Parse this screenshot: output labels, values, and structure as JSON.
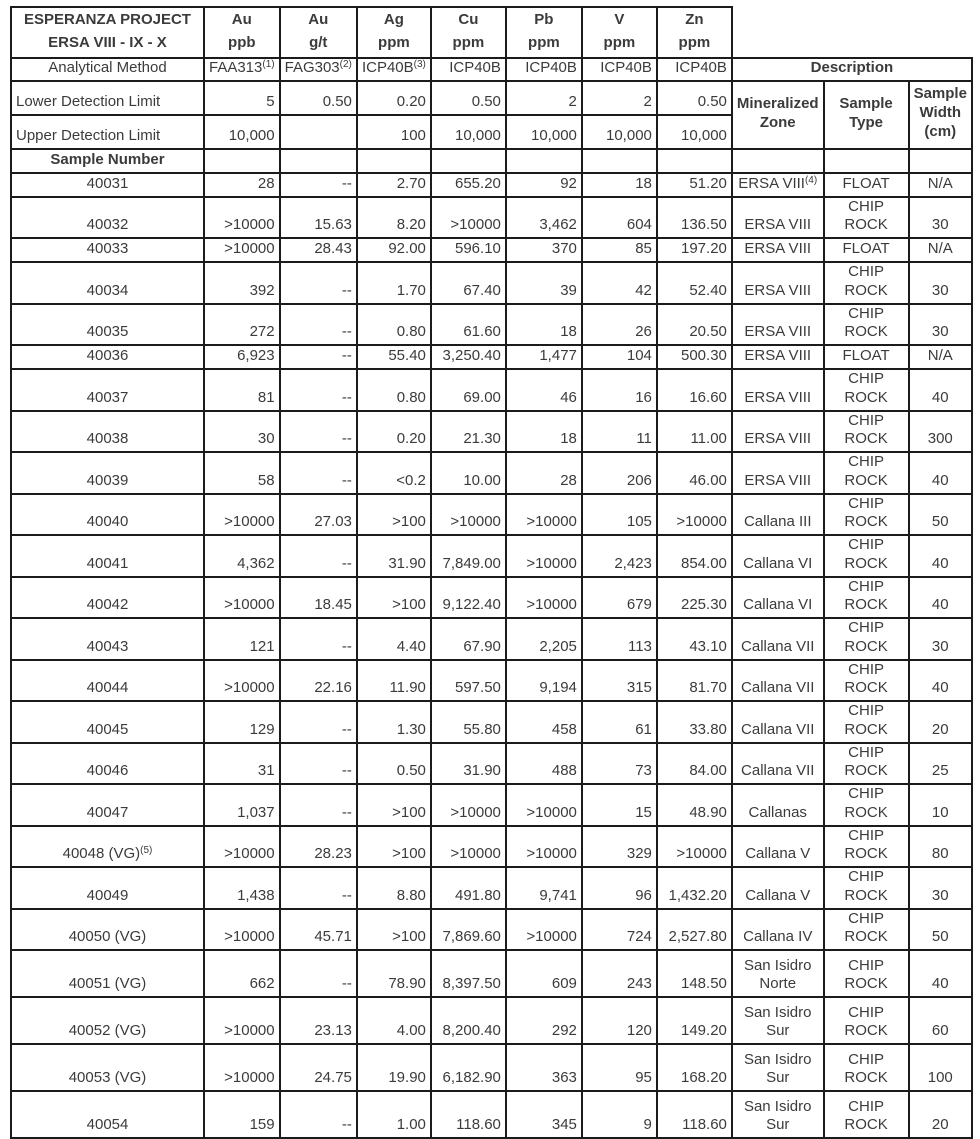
{
  "table": {
    "title_line1": "ESPERANZA PROJECT",
    "title_line2": "ERSA VIII - IX - X",
    "element_headers": [
      {
        "symbol": "Au",
        "unit": "ppb"
      },
      {
        "symbol": "Au",
        "unit": "g/t"
      },
      {
        "symbol": "Ag",
        "unit": "ppm"
      },
      {
        "symbol": "Cu",
        "unit": "ppm"
      },
      {
        "symbol": "Pb",
        "unit": "ppm"
      },
      {
        "symbol": "V",
        "unit": "ppm"
      },
      {
        "symbol": "Zn",
        "unit": "ppm"
      }
    ],
    "analytical_method": {
      "label": "Analytical Method",
      "methods": [
        {
          "text": "FAA313",
          "sup": "(1)"
        },
        {
          "text": "FAG303",
          "sup": "(2)"
        },
        {
          "text": "ICP40B",
          "sup": "(3)"
        },
        {
          "text": "ICP40B",
          "sup": ""
        },
        {
          "text": "ICP40B",
          "sup": ""
        },
        {
          "text": "ICP40B",
          "sup": ""
        },
        {
          "text": "ICP40B",
          "sup": ""
        }
      ]
    },
    "lower_detection": {
      "label": "Lower Detection Limit",
      "values": [
        "5",
        "0.50",
        "0.20",
        "0.50",
        "2",
        "2",
        "0.50"
      ]
    },
    "upper_detection": {
      "label": "Upper Detection Limit",
      "values": [
        "10,000",
        "",
        "100",
        "10,000",
        "10,000",
        "10,000",
        "10,000"
      ]
    },
    "sample_number_label": "Sample Number",
    "description_header": "Description",
    "description_columns": [
      "Mineralized\nZone",
      "Sample\nType",
      "Sample\nWidth\n(cm)"
    ],
    "samples": [
      {
        "id": "40031",
        "au_ppb": "28",
        "au_gt": "--",
        "ag": "2.70",
        "cu": "655.20",
        "pb": "92",
        "v": "18",
        "zn": "51.20",
        "zone": "ERSA VIII",
        "zone_sup": "(4)",
        "type": "FLOAT",
        "width": "N/A"
      },
      {
        "id": "40032",
        "au_ppb": ">10000",
        "au_gt": "15.63",
        "ag": "8.20",
        "cu": ">10000",
        "pb": "3,462",
        "v": "604",
        "zn": "136.50",
        "zone": "ERSA VIII",
        "type": "CHIP ROCK",
        "width": "30"
      },
      {
        "id": "40033",
        "au_ppb": ">10000",
        "au_gt": "28.43",
        "ag": "92.00",
        "cu": "596.10",
        "pb": "370",
        "v": "85",
        "zn": "197.20",
        "zone": "ERSA VIII",
        "type": "FLOAT",
        "width": "N/A"
      },
      {
        "id": "40034",
        "au_ppb": "392",
        "au_gt": "--",
        "ag": "1.70",
        "cu": "67.40",
        "pb": "39",
        "v": "42",
        "zn": "52.40",
        "zone": "ERSA VIII",
        "type": "CHIP ROCK",
        "width": "30"
      },
      {
        "id": "40035",
        "au_ppb": "272",
        "au_gt": "--",
        "ag": "0.80",
        "cu": "61.60",
        "pb": "18",
        "v": "26",
        "zn": "20.50",
        "zone": "ERSA VIII",
        "type": "CHIP ROCK",
        "width": "30"
      },
      {
        "id": "40036",
        "au_ppb": "6,923",
        "au_gt": "--",
        "ag": "55.40",
        "cu": "3,250.40",
        "pb": "1,477",
        "v": "104",
        "zn": "500.30",
        "zone": "ERSA VIII",
        "type": "FLOAT",
        "width": "N/A"
      },
      {
        "id": "40037",
        "au_ppb": "81",
        "au_gt": "--",
        "ag": "0.80",
        "cu": "69.00",
        "pb": "46",
        "v": "16",
        "zn": "16.60",
        "zone": "ERSA VIII",
        "type": "CHIP ROCK",
        "width": "40"
      },
      {
        "id": "40038",
        "au_ppb": "30",
        "au_gt": "--",
        "ag": "0.20",
        "cu": "21.30",
        "pb": "18",
        "v": "11",
        "zn": "11.00",
        "zone": "ERSA VIII",
        "type": "CHIP ROCK",
        "width": "300"
      },
      {
        "id": "40039",
        "au_ppb": "58",
        "au_gt": "--",
        "ag": "<0.2",
        "cu": "10.00",
        "pb": "28",
        "v": "206",
        "zn": "46.00",
        "zone": "ERSA VIII",
        "type": "CHIP ROCK",
        "width": "40"
      },
      {
        "id": "40040",
        "au_ppb": ">10000",
        "au_gt": "27.03",
        "ag": ">100",
        "cu": ">10000",
        "pb": ">10000",
        "v": "105",
        "zn": ">10000",
        "zone": "Callana III",
        "type": "CHIP ROCK",
        "width": "50"
      },
      {
        "id": "40041",
        "au_ppb": "4,362",
        "au_gt": "--",
        "ag": "31.90",
        "cu": "7,849.00",
        "pb": ">10000",
        "v": "2,423",
        "zn": "854.00",
        "zone": "Callana VI",
        "type": "CHIP ROCK",
        "width": "40"
      },
      {
        "id": "40042",
        "au_ppb": ">10000",
        "au_gt": "18.45",
        "ag": ">100",
        "cu": "9,122.40",
        "pb": ">10000",
        "v": "679",
        "zn": "225.30",
        "zone": "Callana VI",
        "type": "CHIP ROCK",
        "width": "40"
      },
      {
        "id": "40043",
        "au_ppb": "121",
        "au_gt": "--",
        "ag": "4.40",
        "cu": "67.90",
        "pb": "2,205",
        "v": "113",
        "zn": "43.10",
        "zone": "Callana VII",
        "type": "CHIP ROCK",
        "width": "30"
      },
      {
        "id": "40044",
        "au_ppb": ">10000",
        "au_gt": "22.16",
        "ag": "11.90",
        "cu": "597.50",
        "pb": "9,194",
        "v": "315",
        "zn": "81.70",
        "zone": "Callana VII",
        "type": "CHIP ROCK",
        "width": "40"
      },
      {
        "id": "40045",
        "au_ppb": "129",
        "au_gt": "--",
        "ag": "1.30",
        "cu": "55.80",
        "pb": "458",
        "v": "61",
        "zn": "33.80",
        "zone": "Callana VII",
        "type": "CHIP ROCK",
        "width": "20"
      },
      {
        "id": "40046",
        "au_ppb": "31",
        "au_gt": "--",
        "ag": "0.50",
        "cu": "31.90",
        "pb": "488",
        "v": "73",
        "zn": "84.00",
        "zone": "Callana VII",
        "type": "CHIP ROCK",
        "width": "25"
      },
      {
        "id": "40047",
        "au_ppb": "1,037",
        "au_gt": "--",
        "ag": ">100",
        "cu": ">10000",
        "pb": ">10000",
        "v": "15",
        "zn": "48.90",
        "zone": "Callanas",
        "type": "CHIP ROCK",
        "width": "10"
      },
      {
        "id": "40048 (VG)",
        "id_sup": "(5)",
        "au_ppb": ">10000",
        "au_gt": "28.23",
        "ag": ">100",
        "cu": ">10000",
        "pb": ">10000",
        "v": "329",
        "zn": ">10000",
        "zone": "Callana V",
        "type": "CHIP ROCK",
        "width": "80"
      },
      {
        "id": "40049",
        "au_ppb": "1,438",
        "au_gt": "--",
        "ag": "8.80",
        "cu": "491.80",
        "pb": "9,741",
        "v": "96",
        "zn": "1,432.20",
        "zone": "Callana V",
        "type": "CHIP ROCK",
        "width": "30"
      },
      {
        "id": "40050 (VG)",
        "au_ppb": ">10000",
        "au_gt": "45.71",
        "ag": ">100",
        "cu": "7,869.60",
        "pb": ">10000",
        "v": "724",
        "zn": "2,527.80",
        "zone": "Callana IV",
        "type": "CHIP ROCK",
        "width": "50"
      },
      {
        "id": "40051 (VG)",
        "tall": true,
        "au_ppb": "662",
        "au_gt": "--",
        "ag": "78.90",
        "cu": "8,397.50",
        "pb": "609",
        "v": "243",
        "zn": "148.50",
        "zone": "San Isidro\nNorte",
        "type": "CHIP ROCK",
        "width": "40"
      },
      {
        "id": "40052 (VG)",
        "tall": true,
        "au_ppb": ">10000",
        "au_gt": "23.13",
        "ag": "4.00",
        "cu": "8,200.40",
        "pb": "292",
        "v": "120",
        "zn": "149.20",
        "zone": "San Isidro\nSur",
        "type": "CHIP ROCK",
        "width": "60"
      },
      {
        "id": "40053 (VG)",
        "tall": true,
        "au_ppb": ">10000",
        "au_gt": "24.75",
        "ag": "19.90",
        "cu": "6,182.90",
        "pb": "363",
        "v": "95",
        "zn": "168.20",
        "zone": "San Isidro\nSur",
        "type": "CHIP ROCK",
        "width": "100"
      },
      {
        "id": "40054",
        "tall": true,
        "au_ppb": "159",
        "au_gt": "--",
        "ag": "1.00",
        "cu": "118.60",
        "pb": "345",
        "v": "9",
        "zn": "118.60",
        "zone": "San Isidro\nSur",
        "type": "CHIP ROCK",
        "width": "20"
      }
    ]
  }
}
